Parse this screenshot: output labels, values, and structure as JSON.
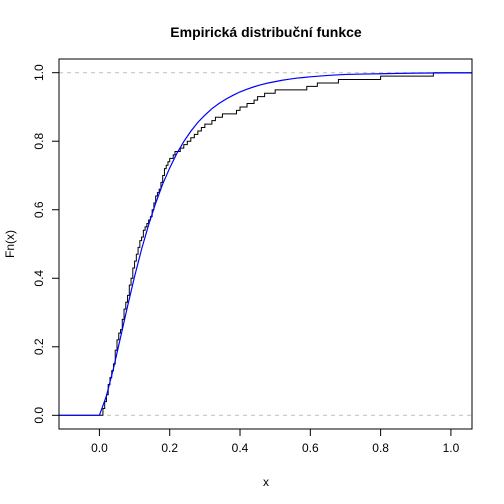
{
  "chart_data": {
    "type": "line",
    "title": "Empirická distribuční funkce",
    "xlabel": "x",
    "ylabel": "Fn(x)",
    "xlim": [
      -0.115,
      1.06
    ],
    "ylim": [
      -0.04,
      1.04
    ],
    "x_ticks": [
      0.0,
      0.2,
      0.4,
      0.6,
      0.8,
      1.0
    ],
    "x_tick_labels": [
      "0.0",
      "0.2",
      "0.4",
      "0.6",
      "0.8",
      "1.0"
    ],
    "y_ticks": [
      0.0,
      0.2,
      0.4,
      0.6,
      0.8,
      1.0
    ],
    "y_tick_labels": [
      "0.0",
      "0.2",
      "0.4",
      "0.6",
      "0.8",
      "1.0"
    ],
    "reference_lines": [
      0,
      1
    ],
    "grid": false,
    "legend": "none",
    "series": [
      {
        "kind": "step",
        "color": "#000000",
        "x": [
          0.005,
          0.01,
          0.015,
          0.02,
          0.025,
          0.03,
          0.035,
          0.04,
          0.045,
          0.05,
          0.055,
          0.06,
          0.065,
          0.07,
          0.075,
          0.08,
          0.085,
          0.09,
          0.095,
          0.1,
          0.105,
          0.11,
          0.115,
          0.12,
          0.125,
          0.13,
          0.135,
          0.14,
          0.145,
          0.15,
          0.155,
          0.16,
          0.165,
          0.17,
          0.175,
          0.18,
          0.185,
          0.19,
          0.195,
          0.2,
          0.205,
          0.21,
          0.215,
          0.22,
          0.23,
          0.24,
          0.25,
          0.26,
          0.27,
          0.28,
          0.29,
          0.3,
          0.31,
          0.32,
          0.33,
          0.34,
          0.35,
          0.37,
          0.38,
          0.39,
          0.4,
          0.42,
          0.44,
          0.45,
          0.47,
          0.5,
          0.54,
          0.59,
          0.62,
          0.63,
          0.68,
          0.8,
          0.95,
          1.06
        ],
        "y": [
          0.0,
          0.02,
          0.04,
          0.06,
          0.09,
          0.11,
          0.13,
          0.15,
          0.19,
          0.22,
          0.24,
          0.25,
          0.28,
          0.31,
          0.33,
          0.35,
          0.38,
          0.4,
          0.43,
          0.45,
          0.47,
          0.49,
          0.51,
          0.52,
          0.54,
          0.55,
          0.56,
          0.57,
          0.58,
          0.6,
          0.62,
          0.64,
          0.65,
          0.66,
          0.68,
          0.7,
          0.72,
          0.73,
          0.74,
          0.75,
          0.75,
          0.76,
          0.77,
          0.77,
          0.78,
          0.79,
          0.8,
          0.81,
          0.82,
          0.83,
          0.84,
          0.85,
          0.85,
          0.86,
          0.87,
          0.87,
          0.88,
          0.88,
          0.88,
          0.89,
          0.9,
          0.91,
          0.92,
          0.93,
          0.94,
          0.95,
          0.95,
          0.96,
          0.97,
          0.97,
          0.98,
          0.99,
          1.0,
          1.0
        ]
      },
      {
        "kind": "curve",
        "color": "#0000ff",
        "x": [
          -0.115,
          0.0,
          0.02,
          0.04,
          0.06,
          0.08,
          0.1,
          0.12,
          0.14,
          0.16,
          0.18,
          0.2,
          0.22,
          0.24,
          0.26,
          0.28,
          0.3,
          0.32,
          0.34,
          0.36,
          0.38,
          0.4,
          0.42,
          0.44,
          0.46,
          0.48,
          0.5,
          0.52,
          0.54,
          0.56,
          0.58,
          0.6,
          0.65,
          0.7,
          0.75,
          0.8,
          0.85,
          0.9,
          0.95,
          1.0,
          1.06
        ],
        "y": [
          0.0,
          0.0,
          0.057,
          0.137,
          0.227,
          0.318,
          0.405,
          0.485,
          0.556,
          0.619,
          0.675,
          0.722,
          0.764,
          0.799,
          0.829,
          0.855,
          0.876,
          0.895,
          0.91,
          0.923,
          0.934,
          0.944,
          0.952,
          0.959,
          0.965,
          0.97,
          0.974,
          0.978,
          0.981,
          0.984,
          0.986,
          0.988,
          0.992,
          0.995,
          0.996,
          0.997,
          0.998,
          0.9987,
          0.9991,
          0.9994,
          0.9996
        ]
      }
    ]
  }
}
